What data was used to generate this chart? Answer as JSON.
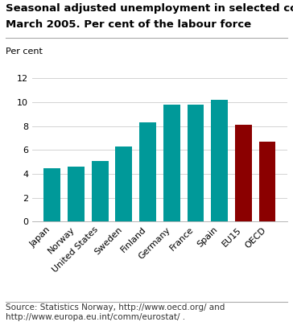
{
  "title_line1": "Seasonal adjusted unemployment in selected countries.",
  "title_line2": "March 2005. Per cent of the labour force",
  "ylabel_text": "Per cent",
  "source": "Source: Statistics Norway, http://www.oecd.org/ and\nhttp://www.europa.eu.int/comm/eurostat/ .",
  "categories": [
    "Japan",
    "Norway",
    "United States",
    "Sweden",
    "Finland",
    "Germany",
    "France",
    "Spain",
    "EU15",
    "OECD"
  ],
  "values": [
    4.5,
    4.6,
    5.1,
    6.3,
    8.3,
    9.8,
    9.8,
    10.2,
    8.1,
    6.7
  ],
  "bar_colors": [
    "#009999",
    "#009999",
    "#009999",
    "#009999",
    "#009999",
    "#009999",
    "#009999",
    "#009999",
    "#8B0000",
    "#8B0000"
  ],
  "ylim": [
    0,
    12
  ],
  "yticks": [
    0,
    2,
    4,
    6,
    8,
    10,
    12
  ],
  "background_color": "#ffffff",
  "grid_color": "#cccccc",
  "title_fontsize": 9.5,
  "label_fontsize": 8,
  "tick_fontsize": 8,
  "source_fontsize": 7.5,
  "bar_width": 0.7
}
